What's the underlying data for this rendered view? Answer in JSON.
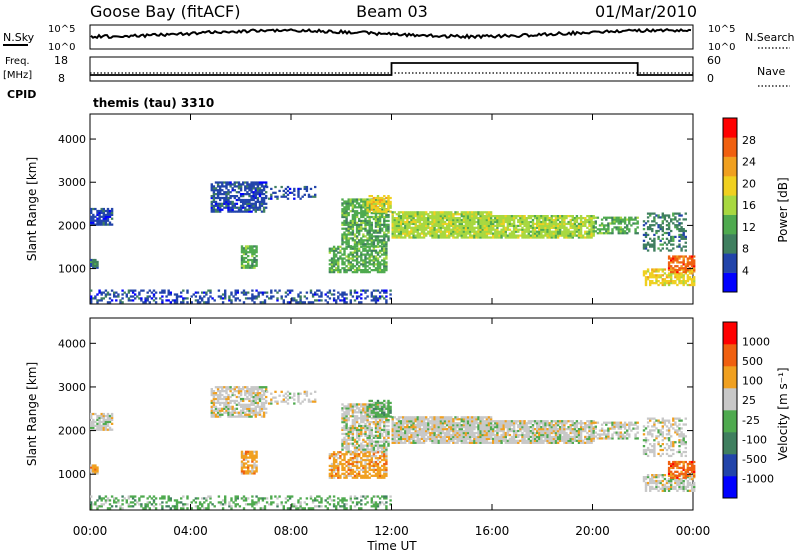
{
  "header": {
    "station": "Goose Bay (fitACF)",
    "beam": "Beam 03",
    "date": "01/Mar/2010"
  },
  "noise_panel": {
    "left_label": "N.Sky",
    "right_label": "N.Search",
    "left_ticks": [
      "10^5",
      "10^0"
    ],
    "right_ticks": [
      "10^5",
      "10^0"
    ]
  },
  "freq_panel": {
    "left_label_line1": "Freq.",
    "left_label_line2": "[MHz]",
    "left_ticks": [
      "18",
      "8"
    ],
    "right_label": "Nave",
    "right_ticks": [
      "60",
      "0"
    ],
    "cpid_label": "CPID",
    "cpid_text": "themis (tau) 3310"
  },
  "colors": {
    "power_scale": [
      "#0000ff",
      "#2244aa",
      "#3f7f5f",
      "#4faa4f",
      "#a8d840",
      "#f0d020",
      "#f0a020",
      "#f06010",
      "#ff0000"
    ],
    "velocity_scale": [
      "#0000ff",
      "#2244aa",
      "#3f7f5f",
      "#4faa4f",
      "#c8c8c8",
      "#f0a020",
      "#f06010",
      "#ff0000"
    ],
    "ground_scatter": "#c0c0b8"
  },
  "chart_data": [
    {
      "type": "heatmap",
      "panel": "power",
      "xlabel": "",
      "ylabel": "Slant Range [km]",
      "x_range_hours": [
        0,
        24
      ],
      "ylim": [
        180,
        4580
      ],
      "y_ticks": [
        "1000",
        "2000",
        "3000",
        "4000"
      ],
      "colorbar_label": "Power [dB]",
      "colorbar_ticks": [
        "4",
        "8",
        "12",
        "16",
        "20",
        "24",
        "28"
      ],
      "scatter_regions": [
        {
          "t": [
            0.0,
            0.9
          ],
          "r": [
            2000,
            2400
          ],
          "level": 1,
          "density": 0.75
        },
        {
          "t": [
            0.0,
            0.3
          ],
          "r": [
            1000,
            1200
          ],
          "level": 2,
          "density": 0.8
        },
        {
          "t": [
            4.8,
            7.0
          ],
          "r": [
            2300,
            3000
          ],
          "level": 1,
          "density": 0.7
        },
        {
          "t": [
            6.0,
            6.6
          ],
          "r": [
            1000,
            1500
          ],
          "level": 3,
          "density": 0.7
        },
        {
          "t": [
            7.0,
            9.0
          ],
          "r": [
            2600,
            2900
          ],
          "level": 1,
          "density": 0.35
        },
        {
          "t": [
            9.5,
            11.8
          ],
          "r": [
            900,
            1500
          ],
          "level": 3,
          "density": 0.7
        },
        {
          "t": [
            10.0,
            11.9
          ],
          "r": [
            1500,
            2600
          ],
          "level": 3,
          "density": 0.75
        },
        {
          "t": [
            11.0,
            12.0
          ],
          "r": [
            2300,
            2700
          ],
          "level": 5,
          "density": 0.7
        },
        {
          "t": [
            12.0,
            16.0
          ],
          "r": [
            1700,
            2300
          ],
          "level": 4,
          "density": 0.9
        },
        {
          "t": [
            16.0,
            20.0
          ],
          "r": [
            1700,
            2200
          ],
          "level": 4,
          "density": 0.85
        },
        {
          "t": [
            20.0,
            21.8
          ],
          "r": [
            1800,
            2200
          ],
          "level": 3,
          "density": 0.6
        },
        {
          "t": [
            22.0,
            24.0
          ],
          "r": [
            600,
            1000
          ],
          "level": 5,
          "density": 0.7
        },
        {
          "t": [
            23.0,
            24.0
          ],
          "r": [
            900,
            1300
          ],
          "level": 7,
          "density": 0.7
        },
        {
          "t": [
            22.0,
            23.7
          ],
          "r": [
            1400,
            2300
          ],
          "level": 2,
          "density": 0.4
        },
        {
          "t": [
            0.0,
            12.0
          ],
          "r": [
            200,
            500
          ],
          "level": 1,
          "density": 0.35
        }
      ]
    },
    {
      "type": "heatmap",
      "panel": "velocity",
      "xlabel": "Time UT",
      "ylabel": "Slant Range [km]",
      "x_range_hours": [
        0,
        24
      ],
      "x_ticks": [
        "00:00",
        "04:00",
        "08:00",
        "12:00",
        "16:00",
        "20:00",
        "00:00"
      ],
      "ylim": [
        180,
        4580
      ],
      "y_ticks": [
        "1000",
        "2000",
        "3000",
        "4000"
      ],
      "colorbar_label": "Velocity [m s⁻¹]",
      "colorbar_ticks": [
        "1000",
        "500",
        "100",
        "25",
        "-25",
        "-100",
        "-500",
        "-1000"
      ],
      "scatter_regions": [
        {
          "t": [
            0.0,
            0.9
          ],
          "r": [
            2000,
            2400
          ],
          "level": 4,
          "density": 0.75
        },
        {
          "t": [
            0.0,
            0.3
          ],
          "r": [
            1000,
            1200
          ],
          "level": 5,
          "density": 0.8
        },
        {
          "t": [
            4.8,
            7.0
          ],
          "r": [
            2300,
            3000
          ],
          "level": 4,
          "density": 0.7
        },
        {
          "t": [
            6.0,
            6.6
          ],
          "r": [
            1000,
            1500
          ],
          "level": 5,
          "density": 0.7
        },
        {
          "t": [
            7.0,
            9.0
          ],
          "r": [
            2600,
            2900
          ],
          "level": 4,
          "density": 0.35
        },
        {
          "t": [
            9.5,
            11.8
          ],
          "r": [
            900,
            1500
          ],
          "level": 5,
          "density": 0.7
        },
        {
          "t": [
            10.0,
            11.9
          ],
          "r": [
            1500,
            2600
          ],
          "level": 4,
          "density": 0.75
        },
        {
          "t": [
            11.0,
            12.0
          ],
          "r": [
            2300,
            2700
          ],
          "level": 3,
          "density": 0.7
        },
        {
          "t": [
            12.0,
            16.0
          ],
          "r": [
            1700,
            2300
          ],
          "level": 4,
          "density": 0.9
        },
        {
          "t": [
            16.0,
            20.0
          ],
          "r": [
            1700,
            2200
          ],
          "level": 4,
          "density": 0.85
        },
        {
          "t": [
            20.0,
            21.8
          ],
          "r": [
            1800,
            2200
          ],
          "level": 4,
          "density": 0.6
        },
        {
          "t": [
            22.0,
            24.0
          ],
          "r": [
            600,
            1000
          ],
          "level": 4,
          "density": 0.7
        },
        {
          "t": [
            23.0,
            24.0
          ],
          "r": [
            900,
            1300
          ],
          "level": 6,
          "density": 0.7
        },
        {
          "t": [
            22.0,
            23.7
          ],
          "r": [
            1400,
            2300
          ],
          "level": 4,
          "density": 0.4
        },
        {
          "t": [
            0.0,
            12.0
          ],
          "r": [
            200,
            500
          ],
          "level": 3,
          "density": 0.35
        }
      ]
    },
    {
      "type": "line",
      "panel": "freq",
      "series": [
        {
          "x": [
            0,
            12,
            12,
            21.8,
            21.8,
            24
          ],
          "values": [
            10.5,
            10.5,
            15.5,
            15.5,
            10.5,
            10.5
          ]
        }
      ],
      "ylim": [
        8,
        18
      ]
    }
  ]
}
